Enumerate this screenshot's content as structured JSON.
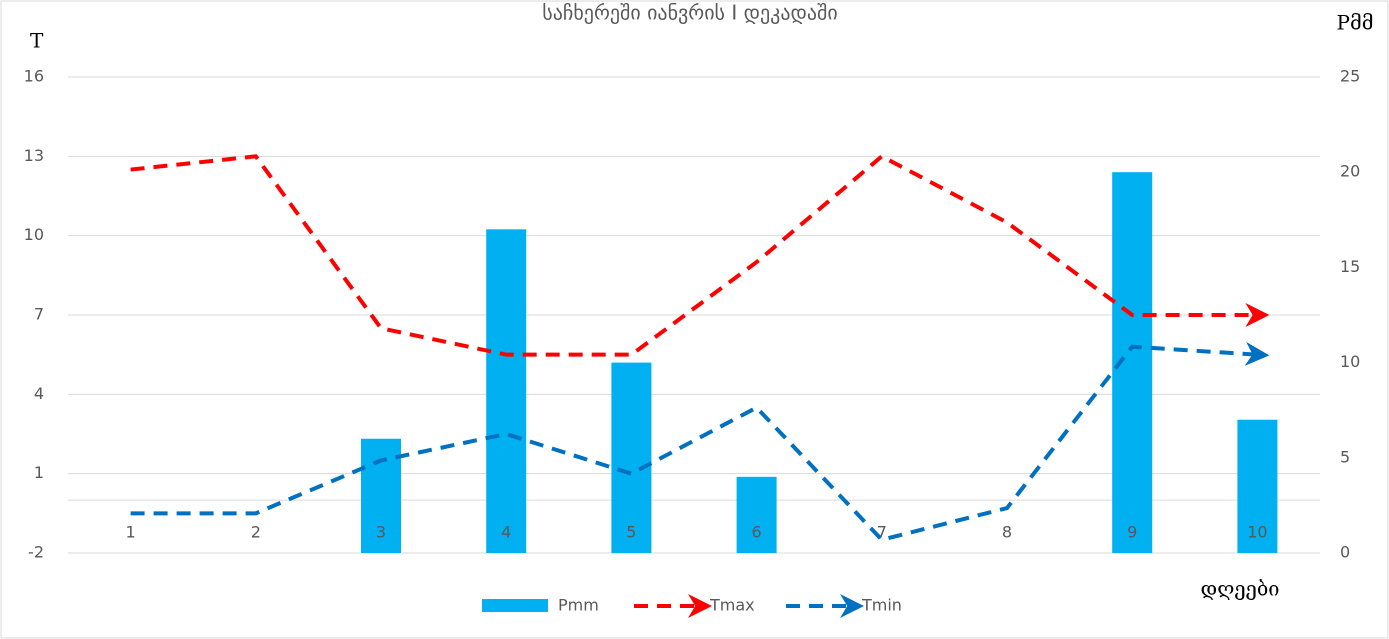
{
  "chart_data": {
    "type": "combo",
    "title": "საჩხერეში იანვრის I დეკადაში",
    "y_label": "T",
    "y2_label": "Pმმ",
    "x_label": "დღეები",
    "categories": [
      "1",
      "2",
      "3",
      "4",
      "5",
      "6",
      "7",
      "8",
      "9",
      "10"
    ],
    "series": [
      {
        "name": "Pmm",
        "type": "bar",
        "axis": "y2",
        "color": "#00b0f0",
        "values": [
          0,
          0,
          6,
          17,
          10,
          4,
          0,
          0,
          20,
          7
        ]
      },
      {
        "name": "Tmax",
        "type": "line",
        "color": "#ff0000",
        "values": [
          12.5,
          13,
          6.5,
          5.5,
          5.5,
          9,
          13,
          10.5,
          7,
          7
        ]
      },
      {
        "name": "Tmin",
        "type": "line",
        "color": "#0070c0",
        "values": [
          -0.5,
          -0.5,
          1.5,
          2.5,
          1,
          3.5,
          -1.5,
          -0.3,
          5.8,
          5.5
        ]
      }
    ],
    "ylim": [
      -2,
      16
    ],
    "yticks": [
      -2,
      1,
      4,
      7,
      10,
      13,
      16
    ],
    "y2lim": [
      0,
      25
    ],
    "y2ticks": [
      0,
      5,
      10,
      15,
      20,
      25
    ],
    "grid": true
  }
}
